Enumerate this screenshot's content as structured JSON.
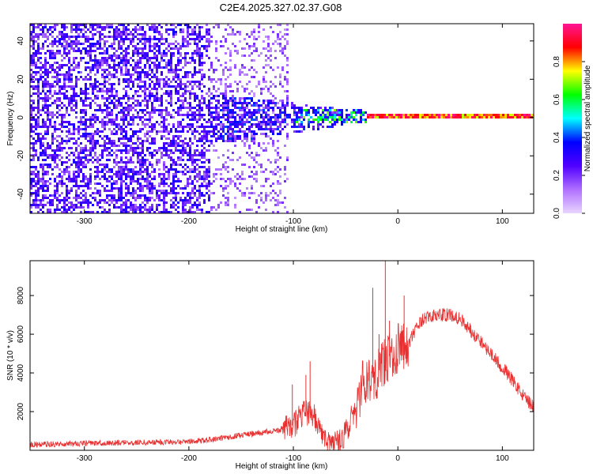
{
  "title": "C2E4.2025.327.02.37.G08",
  "chart_data": [
    {
      "type": "heatmap",
      "name": "spectrogram",
      "xlabel": "Height of straight line (km)",
      "ylabel": "Frequency (Hz)",
      "xlim": [
        -352,
        130
      ],
      "ylim": [
        -50,
        49
      ],
      "x_ticks": [
        -300,
        -200,
        -100,
        0,
        100
      ],
      "x_tick_labels": [
        "-300",
        "-200",
        "-100",
        "0",
        "100"
      ],
      "y_ticks": [
        -40,
        -20,
        0,
        20,
        40
      ],
      "y_tick_labels": [
        "-40",
        "-20",
        "0",
        "20",
        "40"
      ],
      "regions": [
        {
          "x_range": [
            -352,
            -180
          ],
          "freq_range": [
            -50,
            49
          ],
          "amplitude": 0.25,
          "density": "dense",
          "description": "broadband noise"
        },
        {
          "x_range": [
            -180,
            -105
          ],
          "freq_range": [
            -50,
            49
          ],
          "amplitude": 0.15,
          "density": "sparse",
          "description": "faint broadband noise"
        },
        {
          "x_range": [
            -180,
            -50
          ],
          "freq_range": [
            -15,
            12
          ],
          "amplitude": 0.3,
          "density": "dense",
          "description": "tapering noise band"
        },
        {
          "x_range": [
            -100,
            -30
          ],
          "freq_range": [
            -4,
            4
          ],
          "amplitude": 0.5,
          "density": "dense",
          "description": "onset of tone"
        },
        {
          "x_range": [
            -30,
            130
          ],
          "freq_range": [
            -1.5,
            1.5
          ],
          "amplitude": 0.95,
          "density": "line",
          "description": "narrow carrier line"
        }
      ]
    },
    {
      "type": "colorbar",
      "label": "Normalized spectral amplitude",
      "range": [
        0,
        1
      ],
      "ticks": [
        0.0,
        0.2,
        0.4,
        0.6,
        0.8
      ],
      "tick_labels": [
        "0.0",
        "0.2",
        "0.4",
        "0.6",
        "0.8"
      ],
      "colors": [
        "#e8d5ff",
        "#b070ff",
        "#5000ff",
        "#0000ff",
        "#00ffff",
        "#00ff00",
        "#ffff00",
        "#ff0000",
        "#ff1493"
      ]
    },
    {
      "type": "line",
      "name": "snr",
      "xlabel": "Height of straight line (km)",
      "ylabel": "SNR (10 * v/v)",
      "xlim": [
        -352,
        130
      ],
      "ylim": [
        0,
        9800
      ],
      "x_ticks": [
        -300,
        -200,
        -100,
        0,
        100
      ],
      "x_tick_labels": [
        "-300",
        "-200",
        "-100",
        "0",
        "100"
      ],
      "y_ticks": [
        2000,
        4000,
        6000,
        8000
      ],
      "y_tick_labels": [
        "2000",
        "4000",
        "6000",
        "8000"
      ],
      "color": "#e83030",
      "x": [
        -352,
        -300,
        -250,
        -200,
        -180,
        -160,
        -140,
        -120,
        -110,
        -100,
        -95,
        -90,
        -85,
        -80,
        -75,
        -70,
        -65,
        -60,
        -55,
        -50,
        -45,
        -40,
        -35,
        -30,
        -25,
        -20,
        -15,
        -10,
        -5,
        0,
        5,
        10,
        15,
        20,
        25,
        30,
        40,
        50,
        60,
        70,
        80,
        90,
        100,
        110,
        120,
        130
      ],
      "y": [
        300,
        350,
        400,
        450,
        550,
        700,
        850,
        1000,
        1100,
        1300,
        1600,
        1900,
        2000,
        1700,
        1100,
        600,
        400,
        300,
        400,
        900,
        1600,
        2200,
        3200,
        3800,
        3800,
        3900,
        4500,
        4700,
        5100,
        5300,
        5300,
        5500,
        6000,
        6500,
        6800,
        6900,
        7000,
        7000,
        6800,
        6200,
        5600,
        4900,
        4300,
        3600,
        2800,
        2200
      ],
      "spikes": [
        {
          "x": -12,
          "y": 9800
        },
        {
          "x": -24,
          "y": 8400
        },
        {
          "x": 6,
          "y": 8000
        },
        {
          "x": -8,
          "y": 6700
        },
        {
          "x": -18,
          "y": 6000
        },
        {
          "x": -84,
          "y": 4600
        },
        {
          "x": -88,
          "y": 3900
        },
        {
          "x": -101,
          "y": 3400
        }
      ]
    }
  ]
}
